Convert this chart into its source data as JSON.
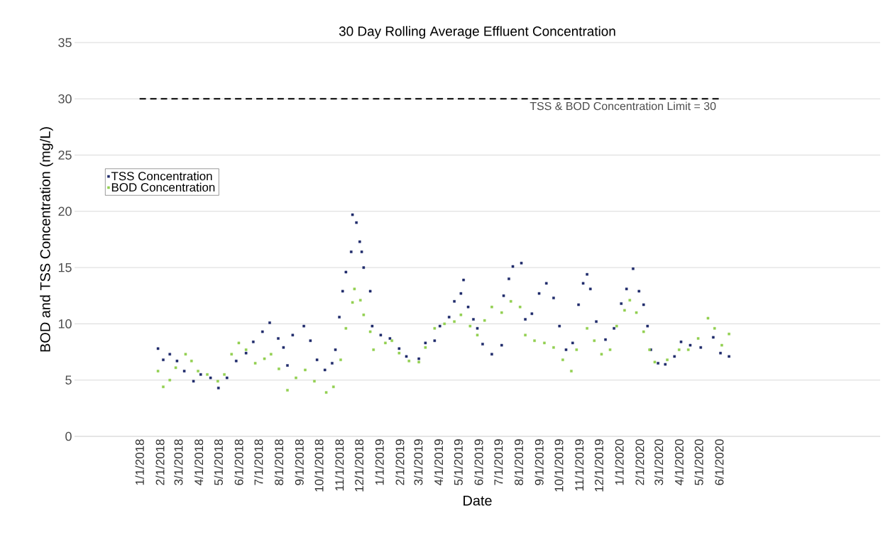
{
  "chart_data": {
    "type": "scatter",
    "title": "30 Day Rolling Average Effluent Concentration",
    "xlabel": "Date",
    "ylabel": "BOD and TSS Concentration (mg/L)",
    "xlim": [
      "2017-09-24",
      "2021-02-01"
    ],
    "ylim": [
      0,
      35
    ],
    "xticks": [
      {
        "value": "2018-01-01",
        "label": "1/1/2018"
      },
      {
        "value": "2018-02-01",
        "label": "2/1/2018"
      },
      {
        "value": "2018-03-01",
        "label": "3/1/2018"
      },
      {
        "value": "2018-04-01",
        "label": "4/1/2018"
      },
      {
        "value": "2018-05-01",
        "label": "5/1/2018"
      },
      {
        "value": "2018-06-01",
        "label": "6/1/2018"
      },
      {
        "value": "2018-07-01",
        "label": "7/1/2018"
      },
      {
        "value": "2018-08-01",
        "label": "8/1/2018"
      },
      {
        "value": "2018-09-01",
        "label": "9/1/2018"
      },
      {
        "value": "2018-10-01",
        "label": "10/1/2018"
      },
      {
        "value": "2018-11-01",
        "label": "11/1/2018"
      },
      {
        "value": "2018-12-01",
        "label": "12/1/2018"
      },
      {
        "value": "2019-01-01",
        "label": "1/1/2019"
      },
      {
        "value": "2019-02-01",
        "label": "2/1/2019"
      },
      {
        "value": "2019-03-01",
        "label": "3/1/2019"
      },
      {
        "value": "2019-04-01",
        "label": "4/1/2019"
      },
      {
        "value": "2019-05-01",
        "label": "5/1/2019"
      },
      {
        "value": "2019-06-01",
        "label": "6/1/2019"
      },
      {
        "value": "2019-07-01",
        "label": "7/1/2019"
      },
      {
        "value": "2019-08-01",
        "label": "8/1/2019"
      },
      {
        "value": "2019-09-01",
        "label": "9/1/2019"
      },
      {
        "value": "2019-10-01",
        "label": "10/1/2019"
      },
      {
        "value": "2019-11-01",
        "label": "11/1/2019"
      },
      {
        "value": "2019-12-01",
        "label": "12/1/2019"
      },
      {
        "value": "2020-01-01",
        "label": "1/1/2020"
      },
      {
        "value": "2020-02-01",
        "label": "2/1/2020"
      },
      {
        "value": "2020-03-01",
        "label": "3/1/2020"
      },
      {
        "value": "2020-04-01",
        "label": "4/1/2020"
      },
      {
        "value": "2020-05-01",
        "label": "5/1/2020"
      },
      {
        "value": "2020-06-01",
        "label": "6/1/2020"
      }
    ],
    "yticks": [
      0,
      5,
      10,
      15,
      20,
      25,
      30,
      35
    ],
    "grid": "y",
    "legend": "top left",
    "marker": "square",
    "ref_lines": [
      {
        "axis": "y",
        "value": 30,
        "label": "TSS & BOD Concentration Limit = 30",
        "color": "#000000",
        "line_style": "dashed"
      }
    ],
    "series": [
      {
        "name": "TSS Concentration",
        "color": "#1f2a6b",
        "x": [
          "2018-01-29",
          "2018-02-06",
          "2018-02-16",
          "2018-02-27",
          "2018-03-10",
          "2018-03-24",
          "2018-04-04",
          "2018-04-19",
          "2018-05-01",
          "2018-05-14",
          "2018-05-28",
          "2018-06-12",
          "2018-06-23",
          "2018-07-07",
          "2018-07-18",
          "2018-07-31",
          "2018-08-08",
          "2018-08-14",
          "2018-08-22",
          "2018-09-08",
          "2018-09-18",
          "2018-09-28",
          "2018-10-10",
          "2018-10-21",
          "2018-10-26",
          "2018-11-01",
          "2018-11-06",
          "2018-11-11",
          "2018-11-19",
          "2018-11-21",
          "2018-11-27",
          "2018-12-02",
          "2018-12-05",
          "2018-12-08",
          "2018-12-18",
          "2018-12-21",
          "2019-01-03",
          "2019-01-17",
          "2019-01-31",
          "2019-02-11",
          "2019-03-02",
          "2019-03-12",
          "2019-03-26",
          "2019-04-03",
          "2019-04-17",
          "2019-04-25",
          "2019-05-05",
          "2019-05-09",
          "2019-05-16",
          "2019-05-24",
          "2019-05-30",
          "2019-06-07",
          "2019-06-21",
          "2019-07-06",
          "2019-07-09",
          "2019-07-17",
          "2019-07-23",
          "2019-08-05",
          "2019-08-11",
          "2019-08-21",
          "2019-09-01",
          "2019-09-12",
          "2019-09-23",
          "2019-10-02",
          "2019-10-12",
          "2019-10-22",
          "2019-10-31",
          "2019-11-07",
          "2019-11-13",
          "2019-11-18",
          "2019-11-27",
          "2019-12-11",
          "2019-12-24",
          "2020-01-04",
          "2020-01-12",
          "2020-01-22",
          "2020-01-31",
          "2020-02-07",
          "2020-02-13",
          "2020-02-18",
          "2020-02-29",
          "2020-03-11",
          "2020-03-25",
          "2020-04-04",
          "2020-04-18",
          "2020-05-04",
          "2020-05-23",
          "2020-06-03",
          "2020-06-16"
        ],
        "values": [
          7.8,
          6.8,
          7.3,
          6.7,
          5.8,
          4.9,
          5.5,
          5.2,
          4.3,
          5.2,
          6.7,
          7.4,
          8.4,
          9.3,
          10.1,
          8.7,
          7.9,
          6.3,
          9.0,
          9.8,
          8.5,
          6.8,
          5.9,
          6.5,
          7.7,
          10.6,
          12.9,
          14.6,
          16.4,
          19.7,
          19.0,
          17.3,
          16.4,
          15.0,
          12.9,
          9.8,
          9.0,
          8.7,
          7.8,
          7.1,
          6.9,
          8.3,
          8.5,
          9.8,
          10.6,
          12.0,
          12.7,
          13.9,
          11.5,
          10.4,
          9.6,
          8.2,
          7.3,
          8.1,
          12.5,
          14.0,
          15.1,
          15.4,
          10.4,
          10.9,
          12.7,
          13.6,
          12.3,
          9.8,
          7.7,
          8.3,
          11.7,
          13.6,
          14.4,
          13.1,
          10.2,
          8.6,
          9.6,
          11.8,
          13.1,
          14.9,
          12.9,
          11.7,
          9.8,
          7.7,
          6.5,
          6.4,
          7.1,
          8.4,
          8.1,
          7.9,
          8.8,
          7.4,
          7.1
        ]
      },
      {
        "name": "BOD Concentration",
        "color": "#92d050",
        "x": [
          "2018-01-29",
          "2018-02-06",
          "2018-02-16",
          "2018-02-25",
          "2018-03-12",
          "2018-03-21",
          "2018-03-31",
          "2018-04-14",
          "2018-04-30",
          "2018-05-10",
          "2018-05-21",
          "2018-06-01",
          "2018-06-12",
          "2018-06-26",
          "2018-07-10",
          "2018-07-20",
          "2018-08-01",
          "2018-08-14",
          "2018-08-27",
          "2018-09-10",
          "2018-09-24",
          "2018-10-12",
          "2018-10-23",
          "2018-11-03",
          "2018-11-11",
          "2018-11-21",
          "2018-11-24",
          "2018-12-03",
          "2018-12-08",
          "2018-12-18",
          "2018-12-23",
          "2019-01-10",
          "2019-01-20",
          "2019-01-31",
          "2019-02-15",
          "2019-03-02",
          "2019-03-12",
          "2019-03-26",
          "2019-04-10",
          "2019-04-25",
          "2019-05-05",
          "2019-05-19",
          "2019-05-30",
          "2019-06-10",
          "2019-06-21",
          "2019-07-06",
          "2019-07-20",
          "2019-08-03",
          "2019-08-11",
          "2019-08-25",
          "2019-09-09",
          "2019-09-23",
          "2019-10-07",
          "2019-10-20",
          "2019-10-28",
          "2019-11-13",
          "2019-11-24",
          "2019-12-05",
          "2019-12-18",
          "2019-12-28",
          "2020-01-09",
          "2020-01-17",
          "2020-01-27",
          "2020-02-07",
          "2020-02-16",
          "2020-02-24",
          "2020-03-14",
          "2020-04-01",
          "2020-04-15",
          "2020-04-30",
          "2020-05-15",
          "2020-05-25",
          "2020-06-05",
          "2020-06-16"
        ],
        "values": [
          5.8,
          4.4,
          5.0,
          6.1,
          7.3,
          6.7,
          5.8,
          5.5,
          4.9,
          5.5,
          7.3,
          8.3,
          7.7,
          6.5,
          6.9,
          7.3,
          6.0,
          4.1,
          5.2,
          5.9,
          4.9,
          3.9,
          4.4,
          6.8,
          9.6,
          11.9,
          13.1,
          12.1,
          10.8,
          9.3,
          7.7,
          8.3,
          8.5,
          7.4,
          6.7,
          6.6,
          7.9,
          9.6,
          10.0,
          10.2,
          10.8,
          9.8,
          9.0,
          10.3,
          11.5,
          11.0,
          12.0,
          11.5,
          9.0,
          8.5,
          8.3,
          7.9,
          6.8,
          5.8,
          7.7,
          9.6,
          8.5,
          7.3,
          7.7,
          9.8,
          11.2,
          12.1,
          11.0,
          9.3,
          7.7,
          6.6,
          6.8,
          7.7,
          7.7,
          8.7,
          10.5,
          9.6,
          8.1,
          9.1
        ]
      }
    ]
  }
}
